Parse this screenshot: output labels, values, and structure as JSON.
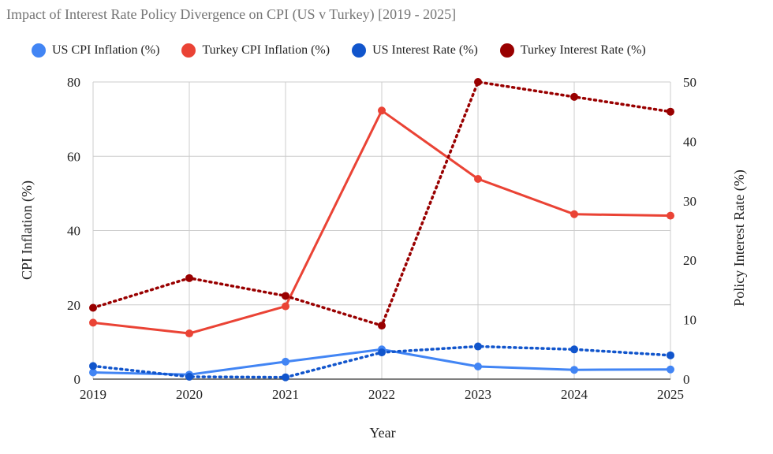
{
  "chart_data": {
    "type": "line",
    "title": "Impact of Interest Rate Policy Divergence on CPI (US v Turkey) [2019 - 2025]",
    "xlabel": "Year",
    "ylabel_left": "CPI Inflation (%)",
    "ylabel_right": "Policy Interest Rate (%)",
    "x": [
      "2019",
      "2020",
      "2021",
      "2022",
      "2023",
      "2024",
      "2025"
    ],
    "ylim_left": [
      0,
      80
    ],
    "yticks_left": [
      "0",
      "20",
      "40",
      "60",
      "80"
    ],
    "ylim_right": [
      0,
      50
    ],
    "yticks_right": [
      "0",
      "10",
      "20",
      "30",
      "40",
      "50"
    ],
    "legend_position": "top",
    "series": [
      {
        "name": "US CPI Inflation (%)",
        "axis": "left",
        "style": "solid",
        "color": "#4285f4",
        "values": [
          1.8,
          1.2,
          4.7,
          8.0,
          3.4,
          2.5,
          2.6
        ]
      },
      {
        "name": "Turkey CPI Inflation (%)",
        "axis": "left",
        "style": "solid",
        "color": "#ea4335",
        "values": [
          15.2,
          12.3,
          19.6,
          72.3,
          53.9,
          44.4,
          44.0
        ]
      },
      {
        "name": "US Interest Rate (%)",
        "axis": "right",
        "style": "dotted",
        "color": "#1155cc",
        "values": [
          2.2,
          0.4,
          0.3,
          4.5,
          5.5,
          5.0,
          4.0
        ]
      },
      {
        "name": "Turkey Interest Rate (%)",
        "axis": "right",
        "style": "dotted",
        "color": "#990000",
        "values": [
          12.0,
          17.0,
          14.0,
          9.0,
          50.0,
          47.5,
          45.0
        ]
      }
    ]
  }
}
